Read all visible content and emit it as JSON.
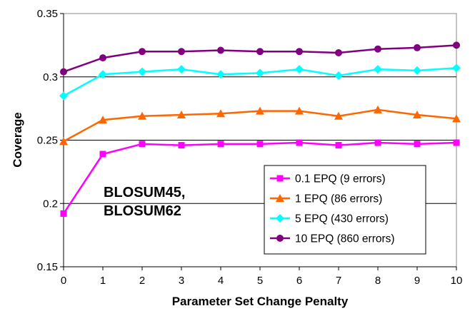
{
  "chart_data": {
    "type": "line",
    "xlabel": "Parameter Set Change Penalty",
    "ylabel": "Coverage",
    "x": [
      0,
      1,
      2,
      3,
      4,
      5,
      6,
      7,
      8,
      9,
      10
    ],
    "xlim": [
      0,
      10
    ],
    "ylim": [
      0.15,
      0.35
    ],
    "yticks": [
      "0.15",
      "0.2",
      "0.25",
      "0.3",
      "0.35"
    ],
    "xticks": [
      "0",
      "1",
      "2",
      "3",
      "4",
      "5",
      "6",
      "7",
      "8",
      "9",
      "10"
    ],
    "grid": "horizontal",
    "legend_position": "bottom-right",
    "annotation": [
      "BLOSUM45,",
      "BLOSUM62"
    ],
    "series": [
      {
        "name": "0.1 EPQ (9 errors)",
        "color": "#ff00ff",
        "marker": "square",
        "values": [
          0.192,
          0.239,
          0.247,
          0.246,
          0.247,
          0.247,
          0.248,
          0.246,
          0.248,
          0.247,
          0.248
        ]
      },
      {
        "name": "1 EPQ (86 errors)",
        "color": "#ff6600",
        "marker": "triangle",
        "values": [
          0.249,
          0.266,
          0.269,
          0.27,
          0.271,
          0.273,
          0.273,
          0.269,
          0.274,
          0.27,
          0.267
        ]
      },
      {
        "name": "5 EPQ (430 errors)",
        "color": "#00ffff",
        "marker": "diamond",
        "values": [
          0.285,
          0.302,
          0.304,
          0.306,
          0.302,
          0.303,
          0.306,
          0.301,
          0.306,
          0.305,
          0.307
        ]
      },
      {
        "name": "10 EPQ (860 errors)",
        "color": "#800080",
        "marker": "circle",
        "values": [
          0.304,
          0.315,
          0.32,
          0.32,
          0.321,
          0.32,
          0.32,
          0.319,
          0.322,
          0.323,
          0.325
        ]
      }
    ]
  }
}
